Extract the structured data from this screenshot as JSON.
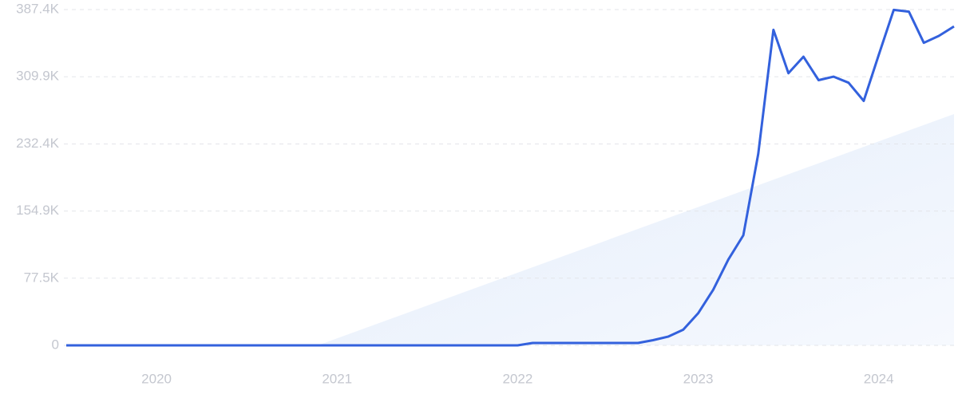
{
  "chart_data": {
    "type": "line",
    "x": [
      2019.5,
      2019.583,
      2019.667,
      2019.75,
      2019.833,
      2019.917,
      2020,
      2020.083,
      2020.167,
      2020.25,
      2020.333,
      2020.417,
      2020.5,
      2020.583,
      2020.667,
      2020.75,
      2020.833,
      2020.917,
      2021,
      2021.083,
      2021.167,
      2021.25,
      2021.333,
      2021.417,
      2021.5,
      2021.583,
      2021.667,
      2021.75,
      2021.833,
      2021.917,
      2022,
      2022.083,
      2022.167,
      2022.25,
      2022.333,
      2022.417,
      2022.5,
      2022.583,
      2022.667,
      2022.75,
      2022.833,
      2022.917,
      2023,
      2023.083,
      2023.167,
      2023.25,
      2023.333,
      2023.417,
      2023.5,
      2023.583,
      2023.667,
      2023.75,
      2023.833,
      2023.917,
      2024,
      2024.083,
      2024.167,
      2024.25,
      2024.333,
      2024.417
    ],
    "series": [
      {
        "color": "#3361dd",
        "values": [
          0,
          0,
          0,
          0,
          0,
          0,
          0,
          0,
          0,
          0,
          0,
          0,
          0,
          0,
          0,
          0,
          0,
          0,
          0,
          0,
          0,
          0,
          0,
          0,
          0,
          0,
          0,
          0,
          0,
          0,
          0,
          2760,
          2760,
          2760,
          2760,
          2760,
          2760,
          2760,
          2760,
          6000,
          10000,
          18000,
          37000,
          64000,
          99000,
          127000,
          221000,
          364000,
          314000,
          333000,
          306000,
          310000,
          303000,
          282000,
          335000,
          387000,
          385000,
          349000,
          357000,
          368000
        ]
      }
    ],
    "xlim": [
      2019.5,
      2024.417
    ],
    "xticks": [
      2020,
      2021,
      2022,
      2023,
      2024
    ],
    "ylim": [
      0,
      387400
    ],
    "yticks": [
      0,
      {
        "value": 77500,
        "label": "77.5K"
      },
      {
        "value": 154900,
        "label": "154.9K"
      },
      {
        "value": 232400,
        "label": "232.4K"
      },
      {
        "value": 309900,
        "label": "309.9K"
      },
      {
        "value": 387400,
        "label": "387.4K"
      }
    ],
    "grid": true
  }
}
